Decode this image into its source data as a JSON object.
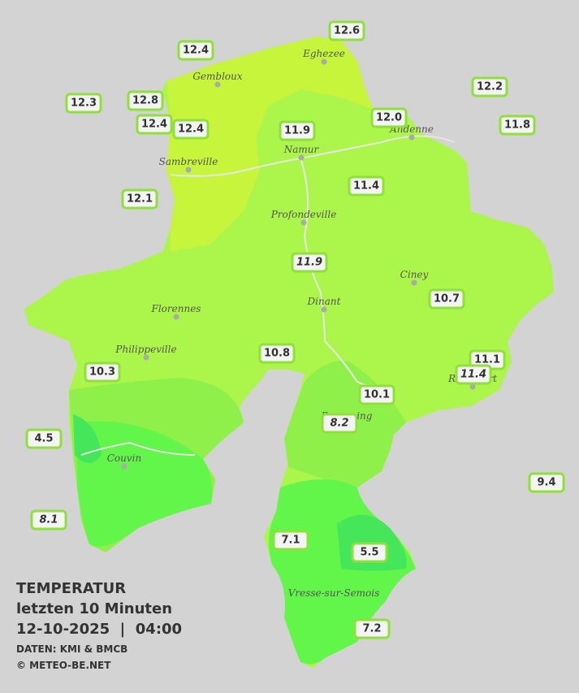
{
  "legend": {
    "title": "TEMPERATUR",
    "period": "letzten 10 Minuten",
    "datetime": "12-10-2025  |  04:00",
    "source": "DATEN: KMI & BMCB",
    "copyright": "© METEO-BE.NET"
  },
  "cities": [
    "Eghezee",
    "Gembloux",
    "Andenne",
    "Namur",
    "Sambreville",
    "Profondeville",
    "Ciney",
    "Dinant",
    "Florennes",
    "Philippeville",
    "Couvin",
    "Vresse-sur-Semois",
    "Beauraing",
    "Rochefort"
  ],
  "stations": [
    {
      "label": "12.6"
    },
    {
      "label": "12.4"
    },
    {
      "label": "12.3"
    },
    {
      "label": "12.8"
    },
    {
      "label": "12.4"
    },
    {
      "label": "12.4"
    },
    {
      "label": "11.9"
    },
    {
      "label": "12.0"
    },
    {
      "label": "12.2"
    },
    {
      "label": "11.8"
    },
    {
      "label": "11.4"
    },
    {
      "label": "12.1"
    },
    {
      "label": "11.9",
      "italic": true
    },
    {
      "label": "10.7"
    },
    {
      "label": "10.8"
    },
    {
      "label": "10.3"
    },
    {
      "label": "11.1"
    },
    {
      "label": "11.4",
      "italic": true
    },
    {
      "label": "10.1"
    },
    {
      "label": "8.2",
      "italic": true
    },
    {
      "label": "4.5"
    },
    {
      "label": "9.4"
    },
    {
      "label": "8.1",
      "italic": true
    },
    {
      "label": "7.1"
    },
    {
      "label": "5.5"
    },
    {
      "label": "7.2"
    }
  ]
}
